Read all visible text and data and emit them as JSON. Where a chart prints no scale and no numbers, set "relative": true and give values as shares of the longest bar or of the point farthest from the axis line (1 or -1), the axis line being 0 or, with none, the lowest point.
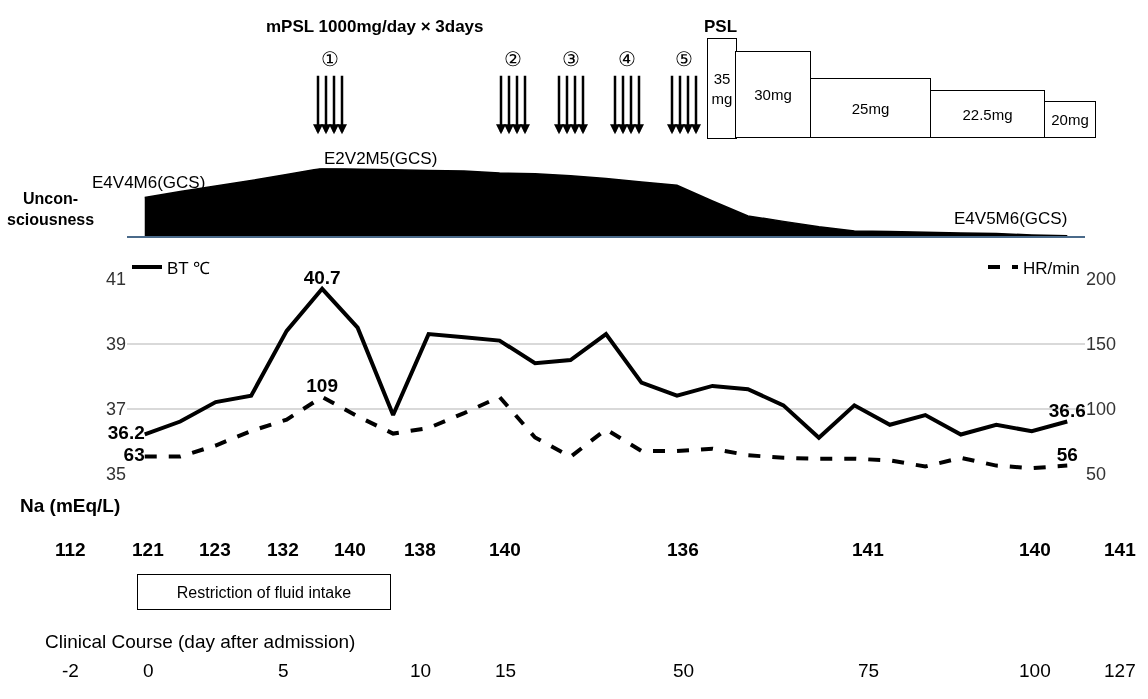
{
  "chart_data": [
    {
      "type": "area",
      "relative": true,
      "categories": [
        null,
        null,
        null,
        null,
        null,
        null,
        null,
        null,
        null,
        null,
        null,
        null,
        null,
        null,
        null,
        null,
        null,
        null,
        null,
        null,
        null,
        null,
        null,
        null,
        null,
        null,
        null
      ],
      "tick_labels": false,
      "series": [
        {
          "color": "#000000",
          "values": [
            0.57,
            0.66,
            0.74,
            0.82,
            0.91,
            1.0,
            0.99,
            0.98,
            0.97,
            0.96,
            0.93,
            0.92,
            0.89,
            0.85,
            0.8,
            0.75,
            0.52,
            0.3,
            0.22,
            0.14,
            0.08,
            0.07,
            0.06,
            0.05,
            0.04,
            0.02,
            0.01
          ]
        }
      ],
      "annotations": [
        "mPSL 1000mg/day × 3days",
        "①",
        "②",
        "③",
        "④",
        "⑤",
        "PSL",
        "35\nmg",
        "30mg",
        "25mg",
        "22.5mg",
        "20mg",
        "E4V4M6(GCS)",
        "E2V2M5(GCS)",
        "E4V5M6(GCS)",
        "Uncon-\nsciousness"
      ]
    },
    {
      "type": "line",
      "categories": [
        null,
        null,
        null,
        null,
        null,
        null,
        null,
        null,
        null,
        null,
        null,
        null,
        null,
        null,
        null,
        null,
        null,
        null,
        null,
        null,
        null,
        null,
        null,
        null,
        null,
        null,
        null
      ],
      "ylim": [
        35,
        41
      ],
      "yticks": [
        35,
        37,
        39,
        41
      ],
      "y2lim": [
        50,
        200
      ],
      "y2ticks": [
        50,
        100,
        150,
        200
      ],
      "grid": "y",
      "legend": "top",
      "tick_labels": "y",
      "marker": "none",
      "series": [
        {
          "name": "BT ℃",
          "color": "#000000",
          "line_style": "solid",
          "values": [
            36.2,
            36.6,
            37.2,
            37.4,
            39.4,
            40.7,
            39.5,
            36.8,
            39.3,
            39.2,
            39.1,
            38.4,
            38.5,
            39.3,
            37.8,
            37.4,
            37.7,
            37.6,
            37.1,
            36.1,
            37.1,
            36.5,
            36.8,
            36.2,
            36.5,
            36.3,
            36.6
          ],
          "value_labels": [
            "36.2",
            null,
            null,
            null,
            null,
            "40.7",
            null,
            null,
            null,
            null,
            null,
            null,
            null,
            null,
            null,
            null,
            null,
            null,
            null,
            null,
            null,
            null,
            null,
            null,
            null,
            null,
            "36.6"
          ]
        },
        {
          "name": "HR/min",
          "color": "#000000",
          "line_style": "dashed",
          "axis": "y2",
          "values": [
            63,
            63,
            71.5,
            82.7,
            91.5,
            109,
            94,
            80.7,
            85,
            96.5,
            109,
            77.7,
            62.7,
            84,
            67.3,
            67.3,
            69,
            64,
            62,
            61.3,
            61.3,
            60,
            55.3,
            62,
            56,
            54,
            56
          ],
          "value_labels": [
            "63",
            null,
            null,
            null,
            null,
            "109",
            null,
            null,
            null,
            null,
            null,
            null,
            null,
            null,
            null,
            null,
            null,
            null,
            null,
            null,
            null,
            null,
            null,
            null,
            null,
            null,
            "56"
          ]
        }
      ],
      "annotations": [
        "Na (mEq/L)",
        "112",
        "121",
        "123",
        "132",
        "140",
        "138",
        "140",
        "136",
        "141",
        "140",
        "141",
        "Restriction of fluid intake",
        "Clinical Course (day after admission)",
        "-2",
        "0",
        "5",
        "10",
        "15",
        "50",
        "75",
        "100",
        "127"
      ]
    }
  ]
}
